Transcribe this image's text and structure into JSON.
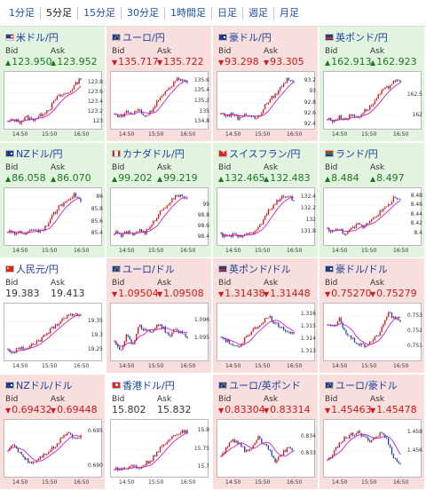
{
  "tabs": [
    {
      "label": "1分足",
      "active": false
    },
    {
      "label": "5分足",
      "active": true
    },
    {
      "label": "15分足",
      "active": false
    },
    {
      "label": "30分足",
      "active": false
    },
    {
      "label": "1時間足",
      "active": false
    },
    {
      "label": "日足",
      "active": false
    },
    {
      "label": "週足",
      "active": false
    },
    {
      "label": "月足",
      "active": false
    }
  ],
  "labels": {
    "bid": "Bid",
    "ask": "Ask"
  },
  "colors": {
    "up": "#1a7a1a",
    "down": "#d01818",
    "ma": "#c020c0",
    "up_bg": "#e2f4e0",
    "down_bg": "#f9dede"
  },
  "cards": [
    {
      "name": "米ドル/円",
      "flag": "us",
      "dir": "up",
      "bid": "123.950",
      "ask": "123.952",
      "yticks": [
        "123.8",
        "123.6",
        "123.4",
        "123.2",
        "123"
      ],
      "xticks": [
        "14:50",
        "15:50",
        "16:50"
      ],
      "chart_data": {
        "type": "candlestick",
        "ylim": [
          122.9,
          123.95
        ],
        "trend": [
          123.0,
          123.05,
          123.0,
          123.1,
          123.05,
          123.1,
          123.2,
          123.3,
          123.5,
          123.55,
          123.6,
          123.75,
          123.9
        ]
      }
    },
    {
      "name": "ユーロ/円",
      "flag": "eu",
      "dir": "down",
      "bid": "135.717",
      "ask": "135.722",
      "yticks": [
        "135.6",
        "135.4",
        "135.2",
        "135",
        "134.8"
      ],
      "xticks": [
        "14:50",
        "15:50",
        "16:50"
      ],
      "chart_data": {
        "type": "candlestick",
        "ylim": [
          134.7,
          135.7
        ],
        "trend": [
          134.95,
          134.9,
          135.0,
          134.95,
          135.05,
          134.9,
          135.0,
          135.2,
          135.3,
          135.45,
          135.6,
          135.65,
          135.55
        ]
      }
    },
    {
      "name": "豪ドル/円",
      "flag": "au",
      "dir": "down",
      "bid": "93.298",
      "ask": "93.305",
      "yticks": [
        "93.2",
        "93",
        "92.8",
        "92.6",
        "92.4"
      ],
      "xticks": [
        "14:50",
        "15:50",
        "16:50"
      ],
      "chart_data": {
        "type": "candlestick",
        "ylim": [
          92.35,
          93.3
        ],
        "trend": [
          92.6,
          92.55,
          92.6,
          92.5,
          92.6,
          92.55,
          92.5,
          92.7,
          92.85,
          92.95,
          93.1,
          93.25,
          93.2
        ]
      }
    },
    {
      "name": "英ポンド/円",
      "flag": "gb",
      "dir": "up",
      "bid": "162.913",
      "ask": "162.923",
      "yticks": [
        "162.5",
        "162"
      ],
      "xticks": [
        "14:50",
        "15:50",
        "16:50"
      ],
      "chart_data": {
        "type": "candlestick",
        "ylim": [
          161.7,
          163.0
        ],
        "trend": [
          161.9,
          161.85,
          161.95,
          161.9,
          162.0,
          161.95,
          162.1,
          162.2,
          162.4,
          162.6,
          162.7,
          162.9,
          162.8
        ]
      }
    },
    {
      "name": "NZドル/円",
      "flag": "nz",
      "dir": "up",
      "bid": "86.058",
      "ask": "86.070",
      "yticks": [
        "86",
        "85.8",
        "85.6",
        "85.4"
      ],
      "xticks": [
        "14:50",
        "15:50",
        "16:50"
      ],
      "chart_data": {
        "type": "candlestick",
        "ylim": [
          85.25,
          86.1
        ],
        "trend": [
          85.45,
          85.4,
          85.45,
          85.4,
          85.5,
          85.45,
          85.5,
          85.65,
          85.8,
          85.9,
          86.0,
          86.05,
          85.95
        ]
      }
    },
    {
      "name": "カナダドル/円",
      "flag": "ca",
      "dir": "up",
      "bid": "99.202",
      "ask": "99.219",
      "yticks": [
        "99",
        "98.8",
        "98.6",
        "98.4"
      ],
      "xticks": [
        "14:50",
        "15:50",
        "16:50"
      ],
      "chart_data": {
        "type": "candlestick",
        "ylim": [
          98.3,
          99.25
        ],
        "trend": [
          98.5,
          98.45,
          98.5,
          98.45,
          98.55,
          98.5,
          98.6,
          98.8,
          98.95,
          99.05,
          99.15,
          99.2,
          99.1
        ]
      }
    },
    {
      "name": "スイスフラン/円",
      "flag": "ch",
      "dir": "up",
      "bid": "132.465",
      "ask": "132.483",
      "yticks": [
        "132.4",
        "132.2",
        "132",
        "131.8"
      ],
      "xticks": [
        "14:50",
        "15:50",
        "16:50"
      ],
      "chart_data": {
        "type": "candlestick",
        "ylim": [
          131.6,
          132.5
        ],
        "trend": [
          131.75,
          131.7,
          131.75,
          131.7,
          131.8,
          131.75,
          131.85,
          132.0,
          132.2,
          132.3,
          132.4,
          132.45,
          132.35
        ]
      }
    },
    {
      "name": "ランド/円",
      "flag": "za",
      "dir": "up",
      "bid": "8.484",
      "ask": "8.497",
      "yticks": [
        "8.48",
        "8.46",
        "8.44",
        "8.42",
        "8.4"
      ],
      "xticks": [
        "14:50",
        "15:50",
        "16:50"
      ],
      "chart_data": {
        "type": "candlestick",
        "ylim": [
          8.38,
          8.49
        ],
        "trend": [
          8.41,
          8.405,
          8.41,
          8.4,
          8.41,
          8.42,
          8.415,
          8.43,
          8.44,
          8.45,
          8.46,
          8.48,
          8.47
        ]
      }
    },
    {
      "name": "人民元/円",
      "flag": "cn",
      "dir": "flat",
      "bid": "19.383",
      "ask": "19.413",
      "yticks": [
        "19.35",
        "19.3",
        "19.25"
      ],
      "xticks": [
        "14:50",
        "15:50",
        "16:50"
      ],
      "chart_data": {
        "type": "candlestick",
        "ylim": [
          19.22,
          19.4
        ],
        "trend": [
          19.25,
          19.24,
          19.26,
          19.25,
          19.27,
          19.28,
          19.3,
          19.32,
          19.34,
          19.36,
          19.37,
          19.38,
          19.37
        ]
      }
    },
    {
      "name": "ユーロ/ドル",
      "flag": "eu",
      "dir": "down",
      "bid": "1.09504",
      "ask": "1.09508",
      "yticks": [
        "1.096",
        "1.095"
      ],
      "xticks": [
        "14:50",
        "15:50",
        "16:50"
      ],
      "chart_data": {
        "type": "candlestick",
        "ylim": [
          1.0938,
          1.0968
        ],
        "trend": [
          1.0948,
          1.0943,
          1.0952,
          1.0946,
          1.0957,
          1.0955,
          1.0953,
          1.0958,
          1.0956,
          1.0951,
          1.0955,
          1.0953,
          1.0951
        ]
      }
    },
    {
      "name": "英ポンド/ドル",
      "flag": "gb",
      "dir": "down",
      "bid": "1.31438",
      "ask": "1.31448",
      "yticks": [
        "1.316",
        "1.315",
        "1.314",
        "1.313"
      ],
      "xticks": [
        "14:50",
        "15:50",
        "16:50"
      ],
      "chart_data": {
        "type": "candlestick",
        "ylim": [
          1.3124,
          1.3166
        ],
        "trend": [
          1.3142,
          1.3138,
          1.3135,
          1.3132,
          1.3142,
          1.3146,
          1.315,
          1.3155,
          1.3158,
          1.3152,
          1.315,
          1.3146,
          1.3144
        ]
      }
    },
    {
      "name": "豪ドル/ドル",
      "flag": "au",
      "dir": "down",
      "bid": "0.75270",
      "ask": "0.75279",
      "yticks": [
        "0.753",
        "0.752",
        "0.751"
      ],
      "xticks": [
        "14:50",
        "15:50",
        "16:50"
      ],
      "chart_data": {
        "type": "candlestick",
        "ylim": [
          0.7502,
          0.7536
        ],
        "trend": [
          0.7525,
          0.7522,
          0.7528,
          0.7519,
          0.7515,
          0.7512,
          0.751,
          0.7513,
          0.7516,
          0.7522,
          0.7533,
          0.7528,
          0.7527
        ]
      }
    },
    {
      "name": "NZドル/ドル",
      "flag": "nz",
      "dir": "down",
      "bid": "0.69432",
      "ask": "0.69448",
      "yticks": [
        "0.695",
        "0.690"
      ],
      "xticks": [
        "14:50",
        "15:50",
        "16:50"
      ],
      "chart_data": {
        "type": "candlestick",
        "ylim": [
          0.6888,
          0.6962
        ],
        "trend": [
          0.6925,
          0.693,
          0.692,
          0.691,
          0.6905,
          0.6912,
          0.6918,
          0.6925,
          0.693,
          0.6945,
          0.695,
          0.694,
          0.6943
        ]
      }
    },
    {
      "name": "香港ドル/円",
      "flag": "hk",
      "dir": "flat",
      "bid": "15.802",
      "ask": "15.832",
      "yticks": [
        "15.8",
        "15.75",
        "15.7"
      ],
      "xticks": [
        "14:50",
        "15:50",
        "16:50"
      ],
      "chart_data": {
        "type": "candlestick",
        "ylim": [
          15.68,
          15.82
        ],
        "trend": [
          15.7,
          15.695,
          15.7,
          15.705,
          15.7,
          15.71,
          15.72,
          15.74,
          15.76,
          15.78,
          15.79,
          15.8,
          15.795
        ]
      }
    },
    {
      "name": "ユーロ/英ポンド",
      "flag": "eu",
      "dir": "down",
      "bid": "0.83304",
      "ask": "0.83314",
      "yticks": [
        "0.834",
        "0.833"
      ],
      "xticks": [
        "14:50",
        "15:50",
        "16:50"
      ],
      "chart_data": {
        "type": "candlestick",
        "ylim": [
          0.8318,
          0.8348
        ],
        "trend": [
          0.8328,
          0.8335,
          0.8338,
          0.8336,
          0.8332,
          0.8334,
          0.834,
          0.8336,
          0.8333,
          0.8325,
          0.833,
          0.8334,
          0.8331
        ]
      }
    },
    {
      "name": "ユーロ/豪ドル",
      "flag": "eu",
      "dir": "down",
      "bid": "1.45463",
      "ask": "1.45478",
      "yticks": [
        "1.458",
        "1.456"
      ],
      "xticks": [
        "14:50",
        "15:50",
        "16:50"
      ],
      "chart_data": {
        "type": "candlestick",
        "ylim": [
          1.4535,
          1.459
        ],
        "trend": [
          1.455,
          1.4558,
          1.457,
          1.4575,
          1.4578,
          1.458,
          1.4575,
          1.4572,
          1.4576,
          1.458,
          1.457,
          1.4552,
          1.4547
        ]
      }
    }
  ]
}
